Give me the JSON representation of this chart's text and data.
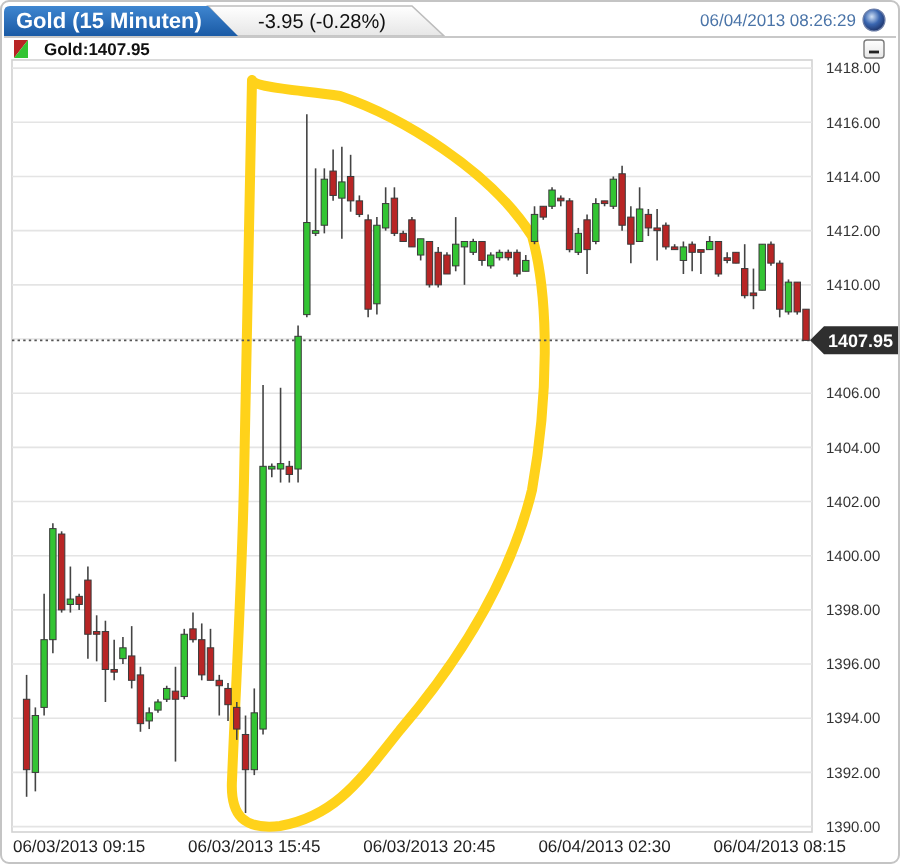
{
  "chart_data": {
    "type": "candlestick",
    "title": "Gold (15 Minuten)",
    "subtitle": "-3.95 (-0.28%)",
    "annotations": [
      "06/04/2013 08:26:29"
    ],
    "categories": [
      null,
      null,
      null,
      null,
      null,
      null,
      "06/03/2013 09:15",
      null,
      null,
      null,
      null,
      null,
      null,
      null,
      null,
      null,
      null,
      null,
      null,
      null,
      null,
      null,
      null,
      null,
      null,
      null,
      "06/03/2013 15:45",
      null,
      null,
      null,
      null,
      null,
      null,
      null,
      null,
      null,
      null,
      null,
      null,
      null,
      null,
      null,
      null,
      null,
      null,
      null,
      "06/03/2013 20:45",
      null,
      null,
      null,
      null,
      null,
      null,
      null,
      null,
      null,
      null,
      null,
      null,
      null,
      null,
      null,
      null,
      null,
      null,
      null,
      "06/04/2013 02:30",
      null,
      null,
      null,
      null,
      null,
      null,
      null,
      null,
      null,
      null,
      null,
      null,
      null,
      null,
      null,
      null,
      null,
      null,
      null,
      "06/04/2013 08:15",
      null,
      null,
      null
    ],
    "series": [
      {
        "name": "Gold:1407.95",
        "ohlc": [
          [
            1394.7,
            1395.6,
            1391.1,
            1392.1
          ],
          [
            1392.0,
            1394.4,
            1391.3,
            1394.1
          ],
          [
            1394.4,
            1398.6,
            1394.1,
            1396.9
          ],
          [
            1396.9,
            1401.2,
            1396.4,
            1401.0
          ],
          [
            1400.8,
            1400.9,
            1397.9,
            1398.0
          ],
          [
            1398.2,
            1399.6,
            1397.9,
            1398.4
          ],
          [
            1398.5,
            1398.6,
            1398.0,
            1398.2
          ],
          [
            1399.1,
            1399.6,
            1396.2,
            1397.1
          ],
          [
            1397.2,
            1397.8,
            1396.1,
            1397.1
          ],
          [
            1397.2,
            1397.6,
            1394.6,
            1395.8
          ],
          [
            1395.8,
            1396.9,
            1395.4,
            1395.7
          ],
          [
            1396.2,
            1397.0,
            1396.0,
            1396.6
          ],
          [
            1396.3,
            1397.4,
            1395.1,
            1395.4
          ],
          [
            1395.6,
            1395.9,
            1393.5,
            1393.8
          ],
          [
            1393.9,
            1394.4,
            1393.6,
            1394.2
          ],
          [
            1394.3,
            1394.7,
            1394.2,
            1394.6
          ],
          [
            1394.7,
            1395.2,
            1394.6,
            1395.1
          ],
          [
            1395.0,
            1395.9,
            1392.4,
            1394.7
          ],
          [
            1394.8,
            1397.3,
            1394.7,
            1397.1
          ],
          [
            1397.3,
            1397.9,
            1396.8,
            1396.9
          ],
          [
            1396.9,
            1397.5,
            1395.4,
            1395.6
          ],
          [
            1396.6,
            1397.3,
            1395.4,
            1395.4
          ],
          [
            1395.4,
            1395.6,
            1394.1,
            1395.2
          ],
          [
            1395.1,
            1395.3,
            1393.9,
            1394.5
          ],
          [
            1394.4,
            1394.6,
            1393.2,
            1393.6
          ],
          [
            1393.4,
            1394.1,
            1390.5,
            1392.1
          ],
          [
            1392.1,
            1395.1,
            1391.9,
            1394.2
          ],
          [
            1393.6,
            1406.3,
            1393.4,
            1403.3
          ],
          [
            1403.2,
            1403.4,
            1402.9,
            1403.3
          ],
          [
            1403.2,
            1406.2,
            1402.7,
            1403.4
          ],
          [
            1403.3,
            1403.5,
            1402.7,
            1403.0
          ],
          [
            1403.2,
            1408.5,
            1402.7,
            1408.1
          ],
          [
            1408.9,
            1416.3,
            1408.8,
            1412.3
          ],
          [
            1411.9,
            1414.3,
            1411.8,
            1412.0
          ],
          [
            1412.2,
            1414.3,
            1411.9,
            1413.9
          ],
          [
            1414.2,
            1415.0,
            1413.1,
            1413.3
          ],
          [
            1413.2,
            1415.1,
            1411.7,
            1413.8
          ],
          [
            1414.0,
            1414.8,
            1412.7,
            1413.1
          ],
          [
            1413.1,
            1413.3,
            1412.5,
            1412.6
          ],
          [
            1412.4,
            1412.6,
            1408.8,
            1409.1
          ],
          [
            1409.3,
            1412.5,
            1408.9,
            1412.2
          ],
          [
            1412.1,
            1413.6,
            1412.0,
            1413.0
          ],
          [
            1413.2,
            1413.6,
            1411.8,
            1411.9
          ],
          [
            1411.9,
            1412.0,
            1411.6,
            1411.6
          ],
          [
            1412.4,
            1412.5,
            1411.4,
            1411.4
          ],
          [
            1411.1,
            1411.7,
            1410.9,
            1411.7
          ],
          [
            1411.6,
            1411.6,
            1409.9,
            1410.0
          ],
          [
            1411.2,
            1411.4,
            1409.9,
            1410.0
          ],
          [
            1411.1,
            1411.2,
            1410.4,
            1410.4
          ],
          [
            1410.7,
            1412.5,
            1410.5,
            1411.5
          ],
          [
            1411.4,
            1411.6,
            1410.0,
            1411.6
          ],
          [
            1411.2,
            1411.7,
            1411.1,
            1411.6
          ],
          [
            1411.6,
            1411.6,
            1410.7,
            1410.9
          ],
          [
            1410.7,
            1411.2,
            1410.6,
            1411.1
          ],
          [
            1411.0,
            1411.3,
            1410.9,
            1411.2
          ],
          [
            1411.2,
            1411.3,
            1410.9,
            1411.0
          ],
          [
            1411.2,
            1411.3,
            1410.3,
            1410.4
          ],
          [
            1410.5,
            1411.1,
            1410.5,
            1410.9
          ],
          [
            1411.6,
            1412.9,
            1411.5,
            1412.6
          ],
          [
            1412.9,
            1412.9,
            1412.4,
            1412.5
          ],
          [
            1412.9,
            1413.6,
            1412.8,
            1413.5
          ],
          [
            1413.2,
            1413.3,
            1412.9,
            1413.1
          ],
          [
            1413.1,
            1413.2,
            1411.2,
            1411.3
          ],
          [
            1411.2,
            1412.1,
            1411.1,
            1411.9
          ],
          [
            1412.4,
            1412.6,
            1410.4,
            1411.3
          ],
          [
            1411.6,
            1413.2,
            1411.5,
            1413.0
          ],
          [
            1413.1,
            1413.1,
            1412.9,
            1413.0
          ],
          [
            1412.9,
            1414.0,
            1412.8,
            1413.9
          ],
          [
            1414.1,
            1414.4,
            1412.0,
            1412.2
          ],
          [
            1412.5,
            1412.9,
            1410.8,
            1411.5
          ],
          [
            1411.6,
            1413.6,
            1411.6,
            1412.8
          ],
          [
            1412.6,
            1412.8,
            1411.8,
            1412.1
          ],
          [
            1412.1,
            1412.8,
            1410.9,
            1412.0
          ],
          [
            1412.2,
            1412.3,
            1411.3,
            1411.4
          ],
          [
            1411.4,
            1411.5,
            1411.3,
            1411.3
          ],
          [
            1410.9,
            1411.6,
            1410.4,
            1411.4
          ],
          [
            1411.5,
            1411.6,
            1410.5,
            1411.2
          ],
          [
            1411.3,
            1411.3,
            1410.4,
            1411.2
          ],
          [
            1411.3,
            1411.8,
            1411.3,
            1411.6
          ],
          [
            1411.6,
            1411.6,
            1410.3,
            1410.4
          ],
          [
            1411.0,
            1411.2,
            1410.8,
            1410.9
          ],
          [
            1411.2,
            1411.2,
            1410.8,
            1410.8
          ],
          [
            1410.6,
            1411.5,
            1409.5,
            1409.6
          ],
          [
            1409.7,
            1410.6,
            1409.1,
            1409.6
          ],
          [
            1409.8,
            1411.5,
            1409.8,
            1411.5
          ],
          [
            1411.5,
            1411.6,
            1410.7,
            1410.8
          ],
          [
            1410.8,
            1410.9,
            1408.8,
            1409.1
          ],
          [
            1409.0,
            1410.2,
            1408.9,
            1410.1
          ],
          [
            1410.1,
            1410.1,
            1408.9,
            1409.0
          ],
          [
            1409.1,
            1409.1,
            1407.95,
            1407.95
          ]
        ]
      }
    ],
    "ylim": [
      1389.8,
      1418.3
    ],
    "yticks": [
      {
        "value": 1390,
        "label": "1390.00"
      },
      {
        "value": 1392,
        "label": "1392.00"
      },
      {
        "value": 1394,
        "label": "1394.00"
      },
      {
        "value": 1396,
        "label": "1396.00"
      },
      {
        "value": 1398,
        "label": "1398.00"
      },
      {
        "value": 1400,
        "label": "1400.00"
      },
      {
        "value": 1402,
        "label": "1402.00"
      },
      {
        "value": 1404,
        "label": "1404.00"
      },
      {
        "value": 1406,
        "label": "1406.00"
      },
      {
        "value": 1408,
        "label": null
      },
      {
        "value": 1410,
        "label": "1410.00"
      },
      {
        "value": 1412,
        "label": "1412.00"
      },
      {
        "value": 1414,
        "label": "1414.00"
      },
      {
        "value": 1416,
        "label": "1416.00"
      },
      {
        "value": 1418,
        "label": "1418.00"
      }
    ],
    "grid": "y",
    "legend": "top left",
    "ref_lines": [
      {
        "axis": "y",
        "value": 1407.95,
        "label": "1407.95",
        "line_style": "dotted"
      }
    ]
  }
}
